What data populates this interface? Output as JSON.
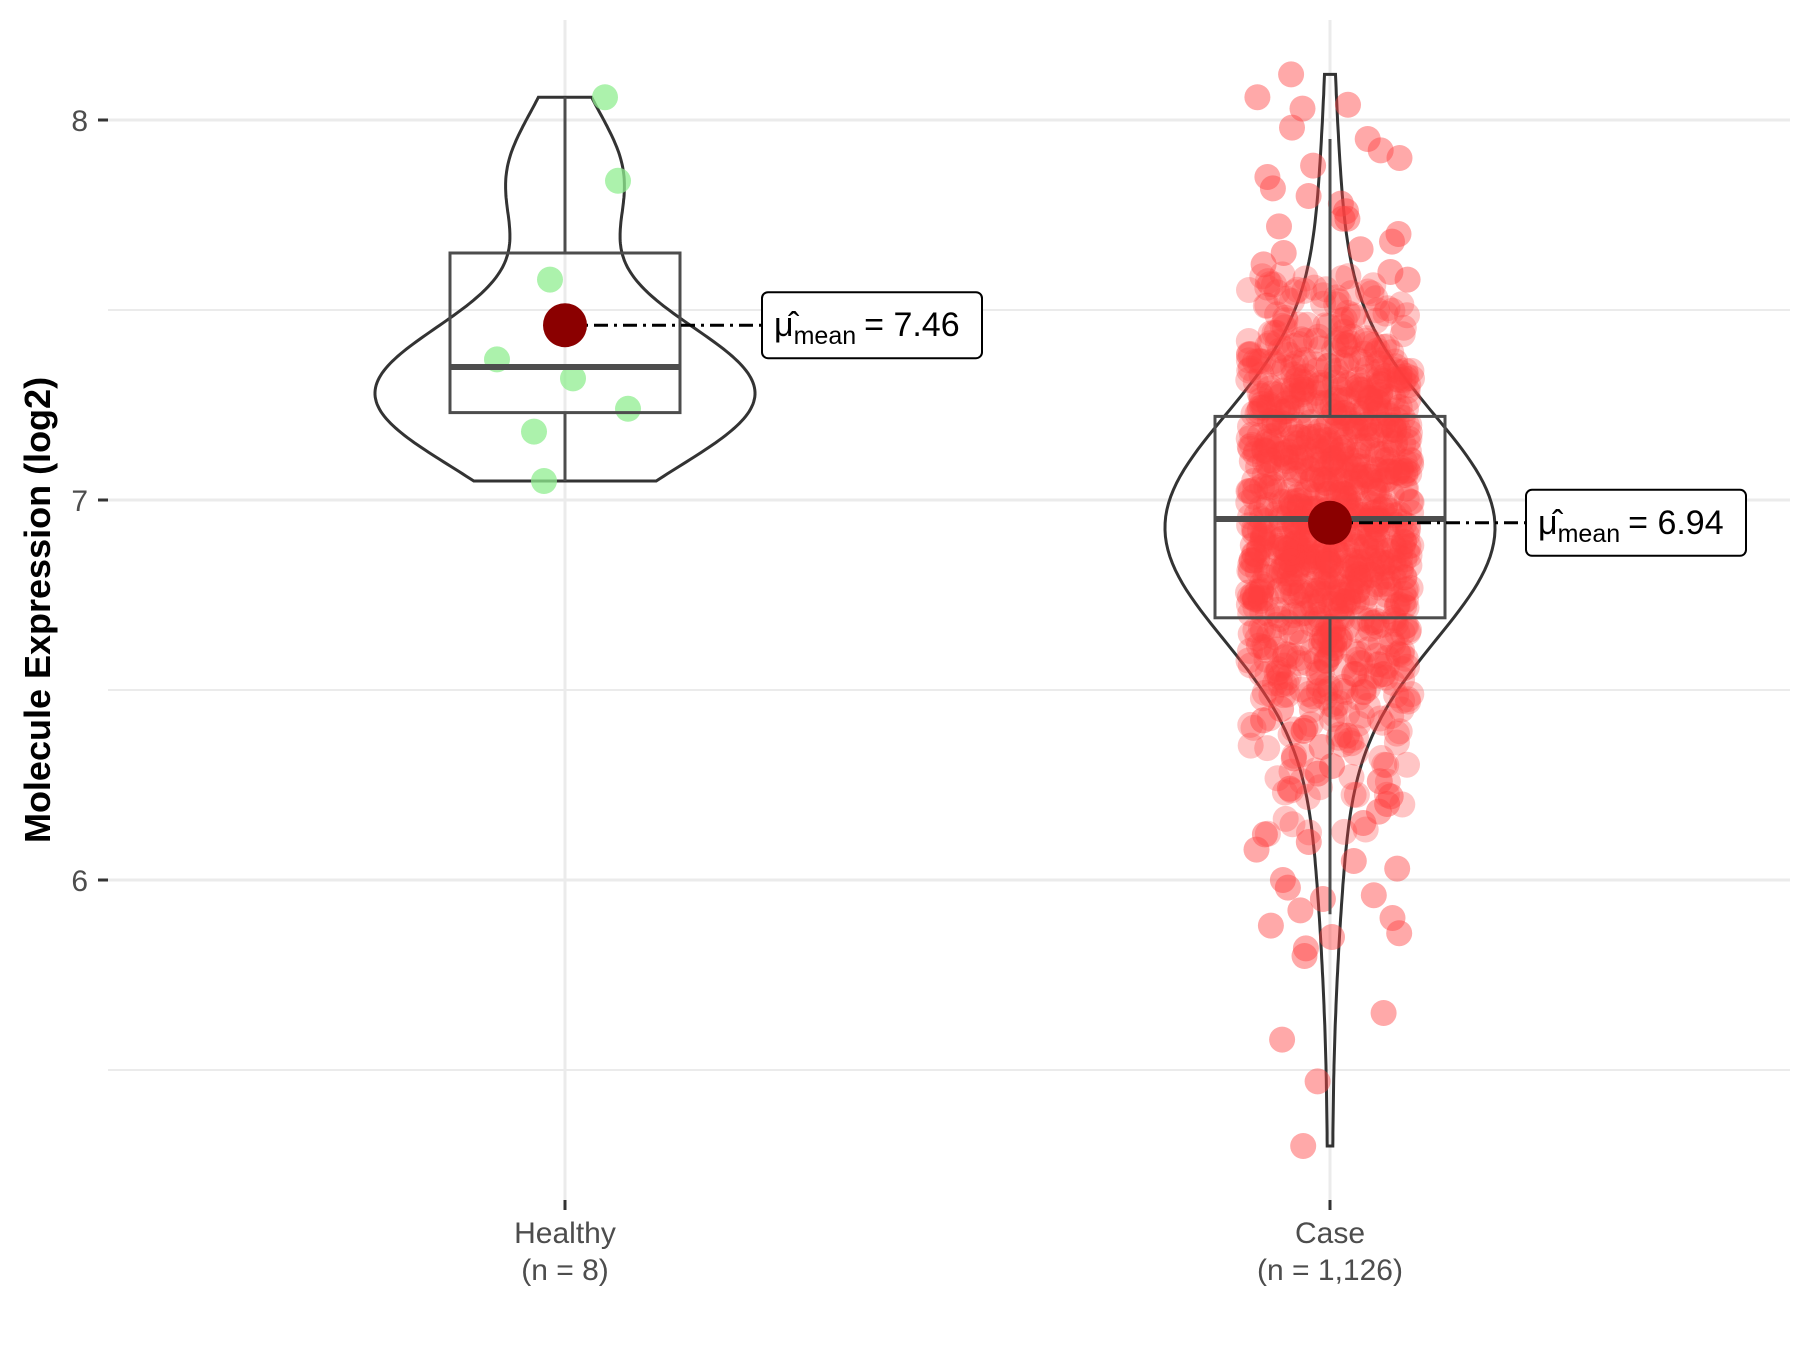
{
  "chart_data": {
    "type": "violin",
    "title": "",
    "xlabel": "",
    "ylabel": "Molecule Expression (log2)",
    "ylim": [
      5.2,
      8.3
    ],
    "yticks": [
      6,
      7,
      8
    ],
    "grid": true,
    "colors": {
      "healthy_points": "#90ee90",
      "case_points": "#ff4040",
      "mean_marker": "#8b0000",
      "violin_stroke": "#333333",
      "box_stroke": "#4d4d4d",
      "grid": "#ebebeb"
    },
    "categories": [
      {
        "name": "Healthy",
        "n_label": "(n = 8)",
        "points": [
          8.06,
          7.84,
          7.58,
          7.37,
          7.32,
          7.24,
          7.18,
          7.05
        ],
        "box": {
          "q1": 7.23,
          "median": 7.35,
          "q3": 7.65,
          "whisker_low": 7.05,
          "whisker_high": 8.06
        },
        "violin_range": [
          7.05,
          8.06
        ],
        "mean": 7.46,
        "mean_label": "= 7.46"
      },
      {
        "name": "Case",
        "n_label": "(n = 1,126)",
        "n": 1126,
        "box": {
          "q1": 6.69,
          "median": 6.95,
          "q3": 7.22,
          "whisker_low": 5.91,
          "whisker_high": 7.95
        },
        "violin_range": [
          5.3,
          8.12
        ],
        "mean": 6.94,
        "mean_label": "= 6.94",
        "outliers": [
          8.12,
          8.06,
          8.04,
          8.03,
          7.98,
          7.95,
          7.92,
          7.9,
          7.88,
          7.85,
          7.82,
          7.8,
          7.78,
          7.76,
          7.74,
          7.74,
          7.72,
          7.7,
          7.68,
          7.66,
          7.65,
          7.62,
          7.6,
          7.58,
          6.45,
          6.42,
          6.4,
          6.38,
          6.35,
          6.32,
          6.3,
          6.28,
          6.26,
          6.24,
          6.22,
          6.2,
          6.18,
          6.15,
          6.12,
          6.1,
          6.08,
          6.05,
          6.03,
          6.0,
          5.98,
          5.96,
          5.95,
          5.92,
          5.9,
          5.88,
          5.86,
          5.85,
          5.82,
          5.8,
          5.65,
          5.58,
          5.47,
          5.3
        ]
      }
    ],
    "mean_symbol": "μ̂",
    "mean_subscript": "mean"
  }
}
